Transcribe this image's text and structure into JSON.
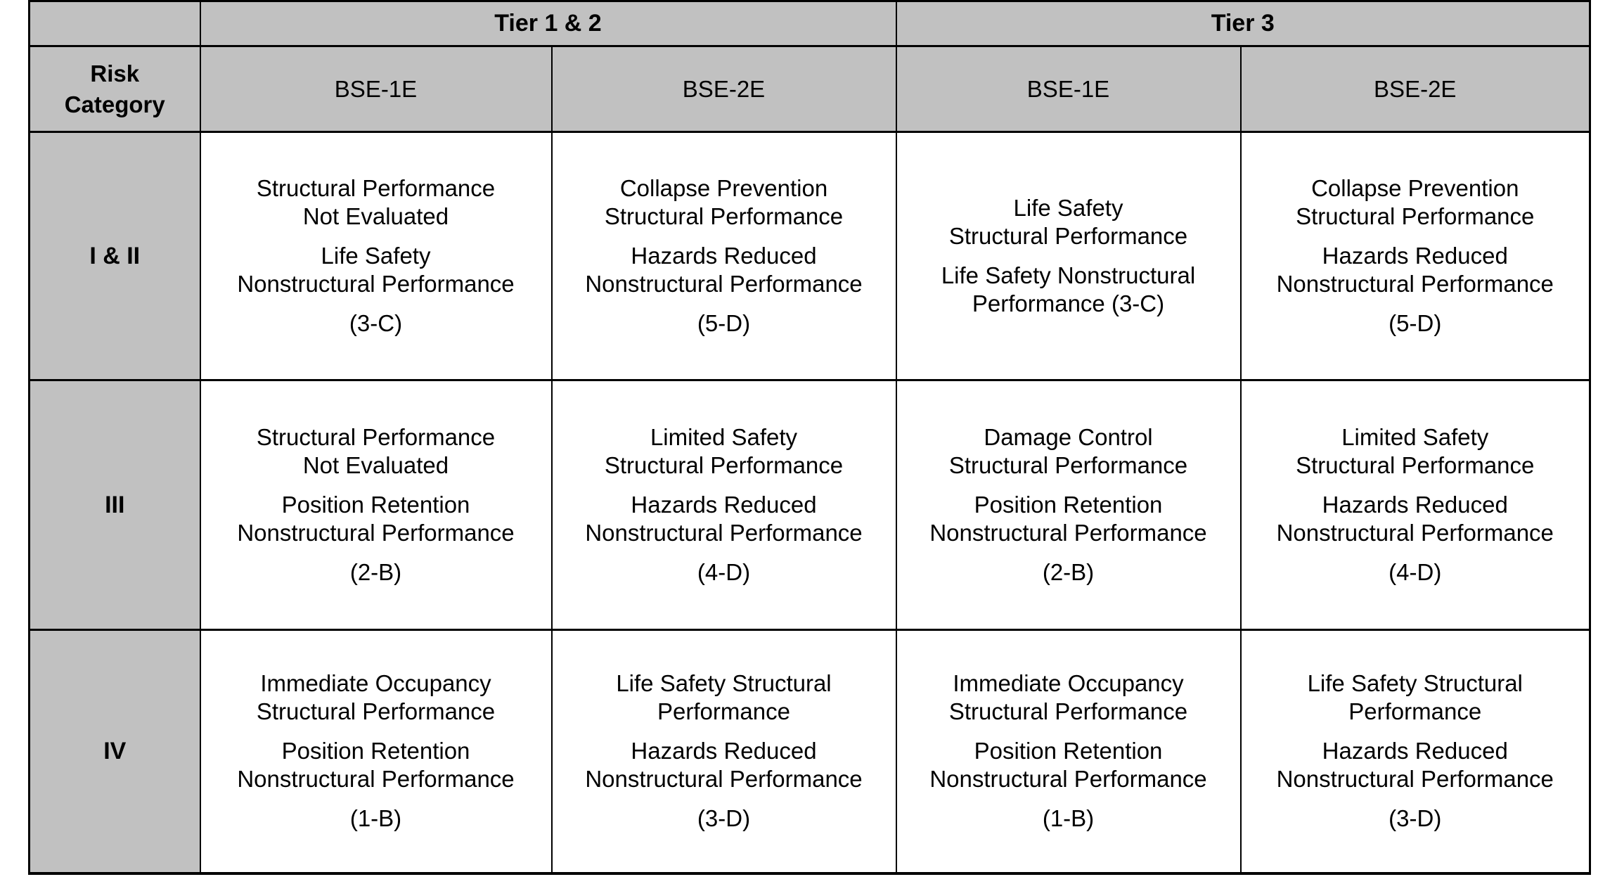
{
  "colors": {
    "header_bg": "#c1c1c1",
    "body_bg": "#ffffff",
    "border": "#000000",
    "text": "#000000"
  },
  "table": {
    "corner_label": "",
    "tier_groups": [
      {
        "label": "Tier 1 & 2"
      },
      {
        "label": "Tier 3"
      }
    ],
    "risk_category_header_lines": [
      "Risk",
      "Category"
    ],
    "hazard_levels": [
      "BSE-1E",
      "BSE-2E",
      "BSE-1E",
      "BSE-2E"
    ],
    "rows": [
      {
        "risk_category": "I & II",
        "cells": [
          [
            [
              "Structural Performance",
              "Not Evaluated"
            ],
            [
              "Life Safety",
              "Nonstructural Performance"
            ],
            [
              "(3-C)"
            ]
          ],
          [
            [
              "Collapse Prevention",
              "Structural Performance"
            ],
            [
              "Hazards Reduced",
              "Nonstructural Performance"
            ],
            [
              "(5-D)"
            ]
          ],
          [
            [
              "Life Safety",
              "Structural Performance"
            ],
            [
              "Life Safety Nonstructural",
              "Performance (3-C)"
            ]
          ],
          [
            [
              "Collapse Prevention",
              "Structural Performance"
            ],
            [
              "Hazards Reduced",
              "Nonstructural Performance"
            ],
            [
              "(5-D)"
            ]
          ]
        ]
      },
      {
        "risk_category": "III",
        "cells": [
          [
            [
              "Structural Performance",
              "Not Evaluated"
            ],
            [
              "Position Retention",
              "Nonstructural Performance"
            ],
            [
              "(2-B)"
            ]
          ],
          [
            [
              "Limited Safety",
              "Structural Performance"
            ],
            [
              "Hazards Reduced",
              "Nonstructural Performance"
            ],
            [
              "(4-D)"
            ]
          ],
          [
            [
              "Damage Control",
              "Structural Performance"
            ],
            [
              "Position Retention",
              "Nonstructural Performance"
            ],
            [
              "(2-B)"
            ]
          ],
          [
            [
              "Limited Safety",
              "Structural Performance"
            ],
            [
              "Hazards Reduced",
              "Nonstructural Performance"
            ],
            [
              "(4-D)"
            ]
          ]
        ]
      },
      {
        "risk_category": "IV",
        "cells": [
          [
            [
              "Immediate Occupancy",
              "Structural Performance"
            ],
            [
              "Position Retention",
              "Nonstructural Performance"
            ],
            [
              "(1-B)"
            ]
          ],
          [
            [
              "Life Safety Structural",
              "Performance"
            ],
            [
              "Hazards Reduced",
              "Nonstructural Performance"
            ],
            [
              "(3-D)"
            ]
          ],
          [
            [
              "Immediate Occupancy",
              "Structural Performance"
            ],
            [
              "Position Retention",
              "Nonstructural Performance"
            ],
            [
              "(1-B)"
            ]
          ],
          [
            [
              "Life Safety Structural",
              "Performance"
            ],
            [
              "Hazards Reduced",
              "Nonstructural Performance"
            ],
            [
              "(3-D)"
            ]
          ]
        ]
      }
    ]
  }
}
